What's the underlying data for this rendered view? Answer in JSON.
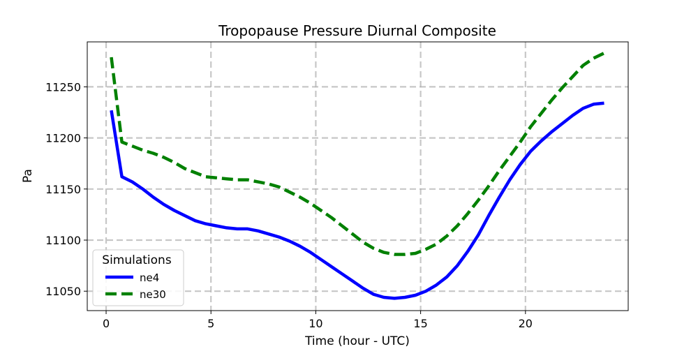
{
  "chart_data": {
    "type": "line",
    "title": "Tropopause Pressure Diurnal Composite",
    "xlabel": "Time (hour - UTC)",
    "ylabel": "Pa",
    "xlim": [
      -0.9,
      24.9
    ],
    "ylim": [
      11031,
      11294
    ],
    "xticks": [
      0,
      5,
      10,
      15,
      20
    ],
    "yticks": [
      11050,
      11100,
      11150,
      11200,
      11250
    ],
    "grid": true,
    "legend": {
      "title": "Simulations",
      "placement": "lower-left"
    },
    "x": [
      0.25,
      0.75,
      1.25,
      1.75,
      2.25,
      2.75,
      3.25,
      3.75,
      4.25,
      4.75,
      5.25,
      5.75,
      6.25,
      6.75,
      7.25,
      7.75,
      8.25,
      8.75,
      9.25,
      9.75,
      10.25,
      10.75,
      11.25,
      11.75,
      12.25,
      12.75,
      13.25,
      13.75,
      14.25,
      14.75,
      15.25,
      15.75,
      16.25,
      16.75,
      17.25,
      17.75,
      18.25,
      18.75,
      19.25,
      19.75,
      20.25,
      20.75,
      21.25,
      21.75,
      22.25,
      22.75,
      23.25,
      23.75
    ],
    "series": [
      {
        "name": "ne4",
        "color": "#0000ff",
        "style": "solid",
        "values": [
          11227,
          11162,
          11157,
          11150,
          11142,
          11135,
          11129,
          11124,
          11119,
          11116,
          11114,
          11112,
          11111,
          11111,
          11109,
          11106,
          11103,
          11099,
          11094,
          11088,
          11081,
          11074,
          11067,
          11060,
          11053,
          11047,
          11044,
          11043,
          11044,
          11046,
          11050,
          11056,
          11064,
          11075,
          11089,
          11105,
          11124,
          11142,
          11159,
          11174,
          11187,
          11197,
          11206,
          11214,
          11222,
          11229,
          11233,
          11234
        ]
      },
      {
        "name": "ne30",
        "color": "#008000",
        "style": "dashed",
        "values": [
          11279,
          11196,
          11192,
          11188,
          11185,
          11181,
          11176,
          11170,
          11166,
          11162,
          11161,
          11160,
          11159,
          11159,
          11157,
          11155,
          11152,
          11147,
          11142,
          11136,
          11129,
          11122,
          11114,
          11106,
          11098,
          11092,
          11088,
          11086,
          11086,
          11087,
          11091,
          11096,
          11104,
          11114,
          11126,
          11139,
          11153,
          11168,
          11182,
          11196,
          11211,
          11224,
          11237,
          11249,
          11260,
          11271,
          11278,
          11283
        ]
      }
    ]
  }
}
